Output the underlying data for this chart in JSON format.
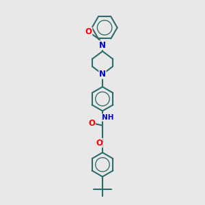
{
  "bg_color": "#e8e8e8",
  "bond_color": "#2d6b6b",
  "bond_width": 1.5,
  "atom_colors": {
    "N": "#0000cc",
    "O": "#ff0000",
    "C": "#2d6b6b"
  },
  "figsize": [
    3.0,
    3.0
  ],
  "dpi": 100,
  "xlim": [
    0,
    10
  ],
  "ylim": [
    0,
    17
  ]
}
